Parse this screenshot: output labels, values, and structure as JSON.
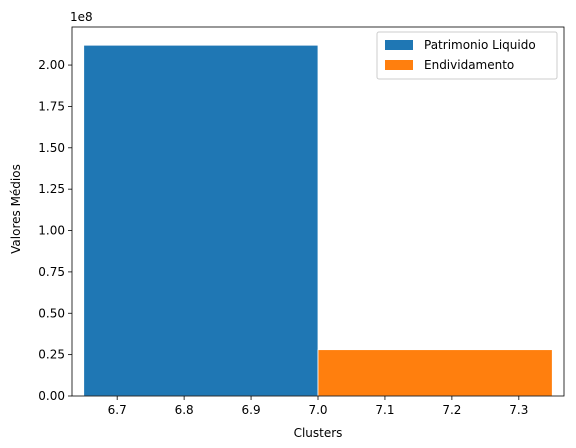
{
  "chart_data": {
    "type": "bar",
    "title": "",
    "xlabel": "Clusters",
    "ylabel": "Valores Médios",
    "y_offset_label": "1e8",
    "xlim": [
      6.6325,
      7.3675
    ],
    "ylim": [
      0,
      2.23
    ],
    "xticks": [
      6.7,
      6.8,
      6.9,
      7.0,
      7.1,
      7.2,
      7.3
    ],
    "xtick_labels": [
      "6.7",
      "6.8",
      "6.9",
      "7.0",
      "7.1",
      "7.2",
      "7.3"
    ],
    "yticks": [
      0.0,
      0.25,
      0.5,
      0.75,
      1.0,
      1.25,
      1.5,
      1.75,
      2.0
    ],
    "ytick_labels": [
      "0.00",
      "0.25",
      "0.50",
      "0.75",
      "1.00",
      "1.25",
      "1.50",
      "1.75",
      "2.00"
    ],
    "grid": false,
    "legend_position": "top-right",
    "series": [
      {
        "name": "Patrimonio Liquido",
        "color": "#1f77b4",
        "x_start": 6.65,
        "x_end": 7.0,
        "value": 2.12
      },
      {
        "name": "Endividamento",
        "color": "#ff7f0e",
        "x_start": 7.0,
        "x_end": 7.35,
        "value": 0.28
      }
    ]
  }
}
